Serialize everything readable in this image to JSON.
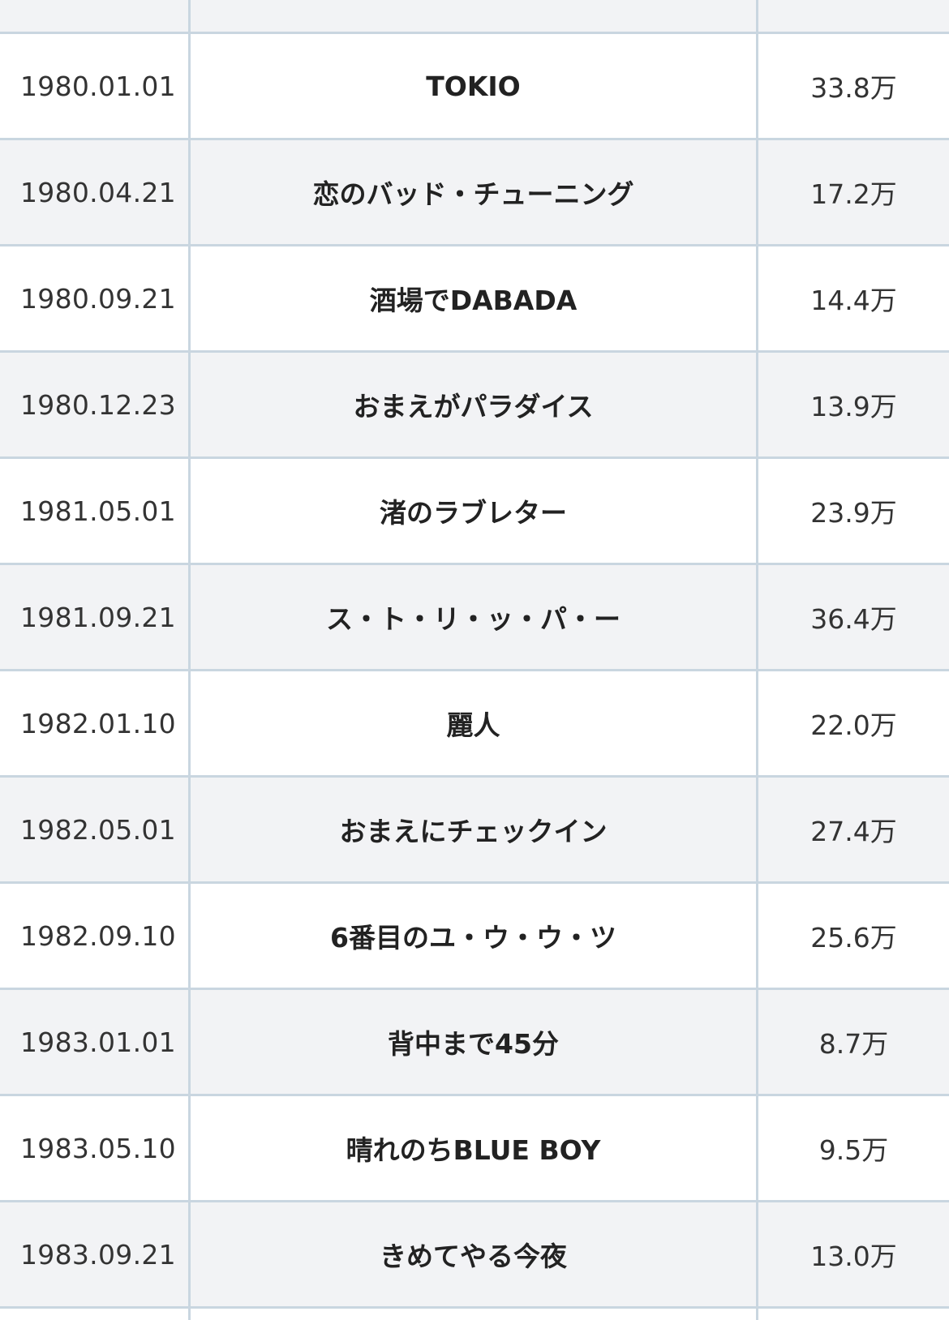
{
  "table": {
    "rows": [
      {
        "date": "",
        "title": "",
        "sales": ""
      },
      {
        "date": "1980.01.01",
        "title": "TOKIO",
        "sales": "33.8万"
      },
      {
        "date": "1980.04.21",
        "title": "恋のバッド・チューニング",
        "sales": "17.2万"
      },
      {
        "date": "1980.09.21",
        "title": "酒場でDABADA",
        "sales": "14.4万"
      },
      {
        "date": "1980.12.23",
        "title": "おまえがパラダイス",
        "sales": "13.9万"
      },
      {
        "date": "1981.05.01",
        "title": "渚のラブレター",
        "sales": "23.9万"
      },
      {
        "date": "1981.09.21",
        "title": "ス・ト・リ・ッ・パ・ー",
        "sales": "36.4万"
      },
      {
        "date": "1982.01.10",
        "title": "麗人",
        "sales": "22.0万"
      },
      {
        "date": "1982.05.01",
        "title": "おまえにチェックイン",
        "sales": "27.4万"
      },
      {
        "date": "1982.09.10",
        "title": "6番目のユ・ウ・ウ・ツ",
        "sales": "25.6万"
      },
      {
        "date": "1983.01.01",
        "title": "背中まで45分",
        "sales": "8.7万"
      },
      {
        "date": "1983.05.10",
        "title": "晴れのちBLUE BOY",
        "sales": "9.5万"
      },
      {
        "date": "1983.09.21",
        "title": "きめてやる今夜",
        "sales": "13.0万"
      },
      {
        "date": "",
        "title": "",
        "sales": ""
      }
    ]
  }
}
